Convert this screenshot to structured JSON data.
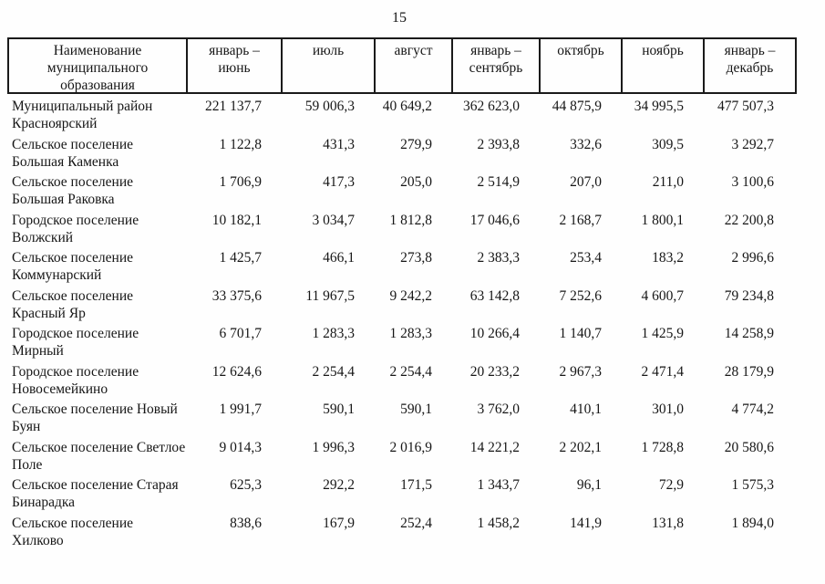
{
  "page": {
    "number": "15"
  },
  "table": {
    "columns": [
      {
        "label": "Наименование\nмуниципального\nобразования"
      },
      {
        "label": "январь –\nиюнь"
      },
      {
        "label": "июль"
      },
      {
        "label": "август"
      },
      {
        "label": "январь –\nсентябрь"
      },
      {
        "label": "октябрь"
      },
      {
        "label": "ноябрь"
      },
      {
        "label": "январь –\nдекабрь"
      }
    ],
    "rows": [
      {
        "name": "Муниципальный район\nКрасноярский",
        "values": [
          "221 137,7",
          "59 006,3",
          "40 649,2",
          "362 623,0",
          "44 875,9",
          "34 995,5",
          "477 507,3"
        ]
      },
      {
        "name": "Сельское поселение\nБольшая Каменка",
        "values": [
          "1 122,8",
          "431,3",
          "279,9",
          "2 393,8",
          "332,6",
          "309,5",
          "3 292,7"
        ]
      },
      {
        "name": "Сельское поселение\nБольшая Раковка",
        "values": [
          "1 706,9",
          "417,3",
          "205,0",
          "2 514,9",
          "207,0",
          "211,0",
          "3 100,6"
        ]
      },
      {
        "name": "Городское поселение\nВолжский",
        "values": [
          "10 182,1",
          "3 034,7",
          "1 812,8",
          "17 046,6",
          "2 168,7",
          "1 800,1",
          "22 200,8"
        ]
      },
      {
        "name": "Сельское поселение\nКоммунарский",
        "values": [
          "1 425,7",
          "466,1",
          "273,8",
          "2 383,3",
          "253,4",
          "183,2",
          "2 996,6"
        ]
      },
      {
        "name": "Сельское поселение\nКрасный Яр",
        "values": [
          "33 375,6",
          "11 967,5",
          "9 242,2",
          "63 142,8",
          "7 252,6",
          "4 600,7",
          "79 234,8"
        ]
      },
      {
        "name": "Городское поселение\nМирный",
        "values": [
          "6 701,7",
          "1 283,3",
          "1 283,3",
          "10 266,4",
          "1 140,7",
          "1 425,9",
          "14 258,9"
        ]
      },
      {
        "name": "Городское поселение\nНовосемейкино",
        "values": [
          "12 624,6",
          "2 254,4",
          "2 254,4",
          "20 233,2",
          "2 967,3",
          "2 471,4",
          "28 179,9"
        ]
      },
      {
        "name": "Сельское поселение Новый\nБуян",
        "values": [
          "1 991,7",
          "590,1",
          "590,1",
          "3 762,0",
          "410,1",
          "301,0",
          "4 774,2"
        ]
      },
      {
        "name": "Сельское поселение Светлое\nПоле",
        "values": [
          "9 014,3",
          "1 996,3",
          "2 016,9",
          "14 221,2",
          "2 202,1",
          "1 728,8",
          "20 580,6"
        ]
      },
      {
        "name": "Сельское поселение Старая\nБинарадка",
        "values": [
          "625,3",
          "292,2",
          "171,5",
          "1 343,7",
          "96,1",
          "72,9",
          "1 575,3"
        ]
      },
      {
        "name": "Сельское поселение\nХилково",
        "values": [
          "838,6",
          "167,9",
          "252,4",
          "1 458,2",
          "141,9",
          "131,8",
          "1 894,0"
        ]
      }
    ]
  }
}
